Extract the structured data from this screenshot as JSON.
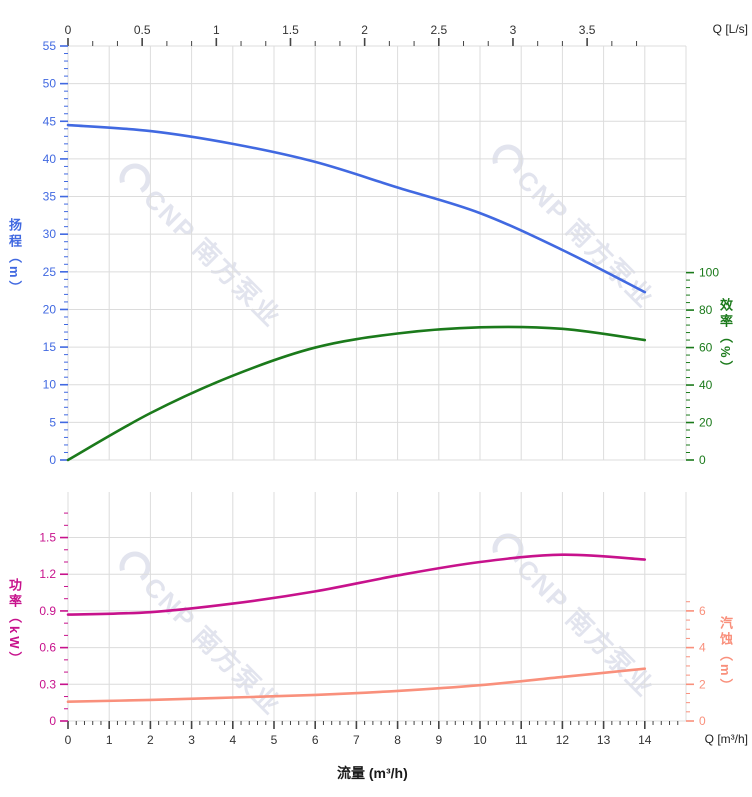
{
  "watermark": {
    "text": "CNP 南方泵业",
    "color": "#e2e4ee"
  },
  "colors": {
    "head": "#4169E1",
    "efficiency": "#1B7A1B",
    "power": "#C7128C",
    "npsh": "#F9907C",
    "grid": "#DCDCDC",
    "axis_tick": "#444444",
    "axis_text": "#333333"
  },
  "chart_data": [
    {
      "type": "line",
      "name": "head-efficiency-chart",
      "top_axis": {
        "label": "Q [L/s]",
        "ticks": [
          "0",
          "0.5",
          "1",
          "1.5",
          "2",
          "2.5",
          "3",
          "3.5"
        ]
      },
      "left_axis": {
        "title": "扬程（m）",
        "color": "#4169E1",
        "ticks": [
          "55",
          "50",
          "45",
          "40",
          "35",
          "30",
          "25",
          "20",
          "15",
          "10",
          "5",
          "0"
        ],
        "range": [
          0,
          55
        ]
      },
      "right_axis": {
        "title": "效率（%）",
        "color": "#1B7A1B",
        "ticks": [
          "100",
          "80",
          "60",
          "40",
          "20",
          "0"
        ],
        "range": [
          0,
          100
        ]
      },
      "x_range_m3h": [
        0,
        15
      ],
      "series": [
        {
          "name": "head",
          "label": "扬程",
          "axis": "left",
          "color": "#4169E1",
          "x": [
            0,
            2,
            4,
            6,
            8,
            10,
            12,
            14
          ],
          "y": [
            44.5,
            43.7,
            42.0,
            39.6,
            36.2,
            32.8,
            27.9,
            22.3
          ]
        },
        {
          "name": "efficiency",
          "label": "效率",
          "axis": "right",
          "color": "#1B7A1B",
          "x": [
            0,
            2,
            4,
            6,
            8,
            10,
            12,
            14
          ],
          "y": [
            0,
            25,
            45,
            60,
            67.5,
            70.8,
            70,
            64
          ]
        }
      ]
    },
    {
      "type": "line",
      "name": "power-npsh-chart",
      "bottom_axis": {
        "label": "Q [m³/h]",
        "title": "流量 (m³/h)",
        "ticks": [
          "0",
          "1",
          "2",
          "3",
          "4",
          "5",
          "6",
          "7",
          "8",
          "9",
          "10",
          "11",
          "12",
          "13",
          "14"
        ]
      },
      "left_axis": {
        "title": "功率（kW）",
        "color": "#C7128C",
        "ticks": [
          "1.5",
          "1.2",
          "0.9",
          "0.6",
          "0.3",
          "0"
        ],
        "range": [
          0,
          1.8
        ]
      },
      "right_axis": {
        "title": "汽蚀（m）",
        "color": "#F9907C",
        "ticks": [
          "6",
          "4",
          "2",
          "0"
        ],
        "range": [
          0,
          6
        ]
      },
      "x_range_m3h": [
        0,
        15
      ],
      "series": [
        {
          "name": "power",
          "label": "功率",
          "axis": "left",
          "color": "#C7128C",
          "x": [
            0,
            2,
            4,
            6,
            8,
            10,
            12,
            14
          ],
          "y": [
            0.87,
            0.89,
            0.96,
            1.06,
            1.19,
            1.3,
            1.36,
            1.32
          ]
        },
        {
          "name": "npsh",
          "label": "汽蚀",
          "axis": "right",
          "color": "#F9907C",
          "x": [
            0,
            2,
            4,
            6,
            8,
            10,
            12,
            14
          ],
          "y": [
            1.05,
            1.15,
            1.28,
            1.42,
            1.64,
            1.95,
            2.4,
            2.85
          ]
        }
      ]
    }
  ]
}
